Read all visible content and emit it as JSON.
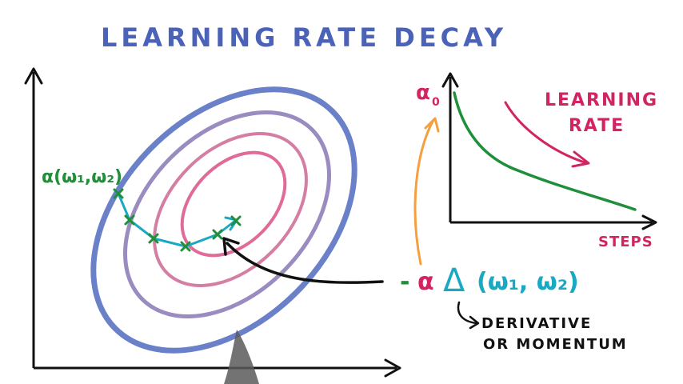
{
  "title": "LEARNING RATE DECAY",
  "colors": {
    "title": "#4a62b8",
    "outer_ellipse": "#6a80c8",
    "mid_ellipse": "#9a8cc0",
    "inner_ellipse": "#d47ea4",
    "core_ellipse": "#e06a98",
    "path": "#1aa9c2",
    "steps": "#1f8f3a",
    "curve": "#1f8f3a",
    "label_red": "#d22462",
    "orange": "#f4a040",
    "black": "#111111",
    "pen": "#555555"
  },
  "left_plot": {
    "start_label": "α(ω₁,ω₂)"
  },
  "update_rule": {
    "minus": "-",
    "alpha": "α",
    "delta": "Δ",
    "args": "(ω₁, ω₂)"
  },
  "annotation": {
    "line1": "DERIVATIVE",
    "line2": "OR MOMENTUM"
  },
  "right_plot": {
    "y_label": "α",
    "y_label_sub": "0",
    "curve_label_line1": "LEARNING",
    "curve_label_line2": "RATE",
    "x_label": "STEPS"
  }
}
